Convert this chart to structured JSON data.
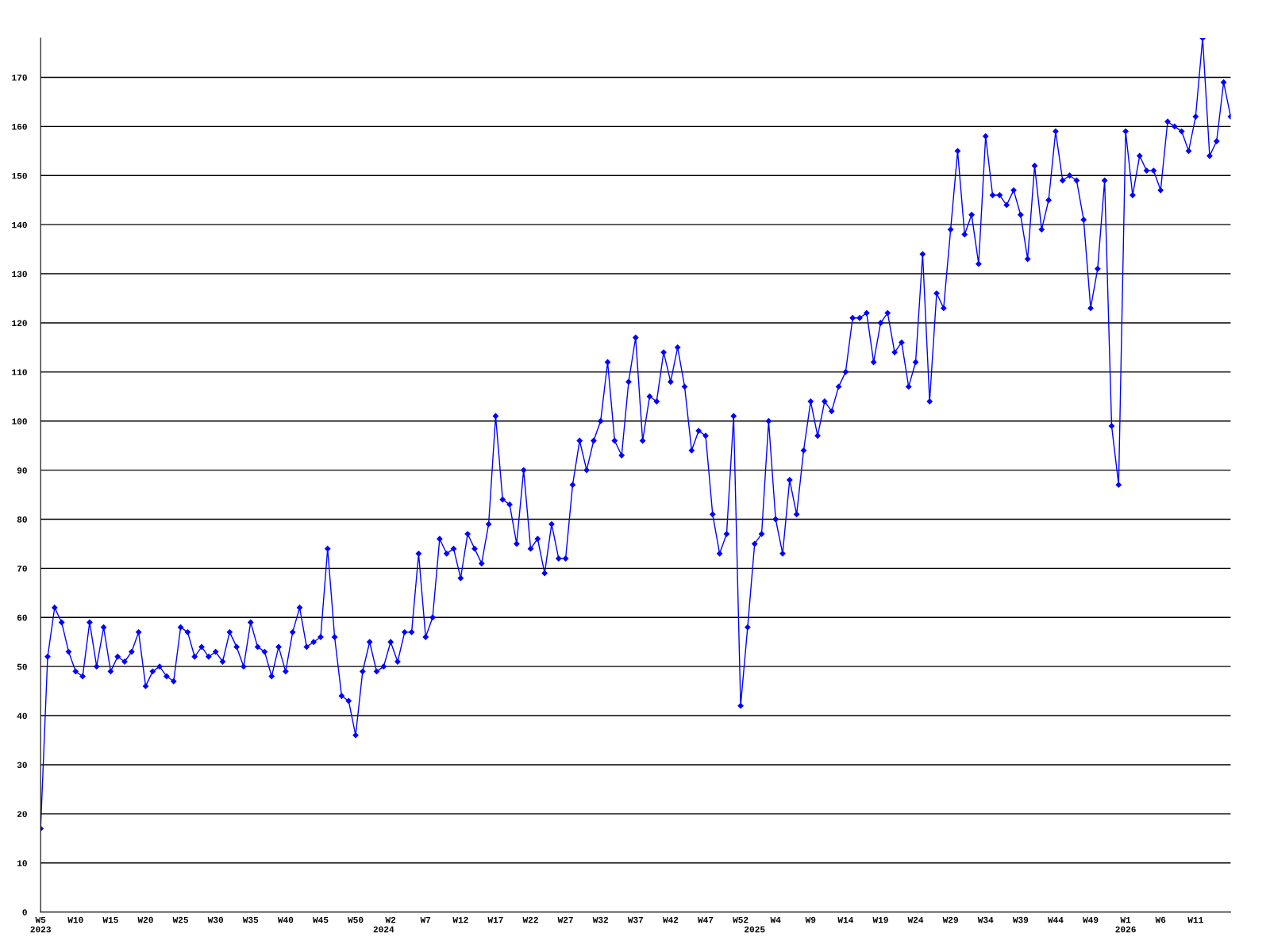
{
  "chart_data": {
    "type": "line",
    "categories": [
      "W5\n2023",
      null,
      null,
      null,
      null,
      "W10",
      null,
      null,
      null,
      null,
      "W15",
      null,
      null,
      null,
      null,
      "W20",
      null,
      null,
      null,
      null,
      "W25",
      null,
      null,
      null,
      null,
      "W30",
      null,
      null,
      null,
      null,
      "W35",
      null,
      null,
      null,
      null,
      "W40",
      null,
      null,
      null,
      null,
      "W45",
      null,
      null,
      null,
      null,
      "W50",
      null,
      null,
      null,
      "\n2024",
      "W2",
      null,
      null,
      null,
      null,
      "W7",
      null,
      null,
      null,
      null,
      "W12",
      null,
      null,
      null,
      null,
      "W17",
      null,
      null,
      null,
      null,
      "W22",
      null,
      null,
      null,
      null,
      "W27",
      null,
      null,
      null,
      null,
      "W32",
      null,
      null,
      null,
      null,
      "W37",
      null,
      null,
      null,
      null,
      "W42",
      null,
      null,
      null,
      null,
      "W47",
      null,
      null,
      null,
      null,
      "W52",
      null,
      "\n2025",
      null,
      null,
      "W4",
      null,
      null,
      null,
      null,
      "W9",
      null,
      null,
      null,
      null,
      "W14",
      null,
      null,
      null,
      null,
      "W19",
      null,
      null,
      null,
      null,
      "W24",
      null,
      null,
      null,
      null,
      "W29",
      null,
      null,
      null,
      null,
      "W34",
      null,
      null,
      null,
      null,
      "W39",
      null,
      null,
      null,
      null,
      "W44",
      null,
      null,
      null,
      null,
      "W49",
      null,
      null,
      null,
      null,
      "W1\n2026",
      null,
      null,
      null,
      null,
      "W6",
      null,
      null,
      null,
      null,
      "W11",
      null,
      null,
      null,
      null,
      null
    ],
    "series": [
      {
        "color": "#0000ff",
        "values": [
          17,
          52,
          62,
          59,
          53,
          49,
          48,
          59,
          50,
          58,
          49,
          52,
          51,
          53,
          57,
          46,
          49,
          50,
          48,
          47,
          58,
          57,
          52,
          54,
          52,
          53,
          51,
          57,
          54,
          50,
          59,
          54,
          53,
          48,
          54,
          49,
          57,
          62,
          54,
          55,
          56,
          74,
          56,
          44,
          43,
          36,
          49,
          55,
          49,
          50,
          55,
          51,
          57,
          57,
          73,
          56,
          60,
          76,
          73,
          74,
          68,
          77,
          74,
          71,
          79,
          101,
          84,
          83,
          75,
          90,
          74,
          76,
          69,
          79,
          72,
          72,
          87,
          96,
          90,
          96,
          100,
          112,
          96,
          93,
          108,
          117,
          96,
          105,
          104,
          114,
          108,
          115,
          107,
          94,
          98,
          97,
          81,
          73,
          77,
          101,
          42,
          58,
          75,
          77,
          100,
          80,
          73,
          88,
          81,
          94,
          104,
          97,
          104,
          102,
          107,
          110,
          121,
          121,
          122,
          112,
          120,
          122,
          114,
          116,
          107,
          112,
          134,
          104,
          126,
          123,
          139,
          155,
          138,
          142,
          132,
          158,
          146,
          146,
          144,
          147,
          142,
          133,
          152,
          139,
          145,
          159,
          149,
          150,
          149,
          141,
          123,
          131,
          149,
          99,
          87,
          159,
          146,
          154,
          151,
          151,
          147,
          161,
          160,
          159,
          155,
          162,
          178,
          154,
          157,
          169,
          162
        ]
      }
    ],
    "ylim": [
      0,
      178
    ],
    "yticks": [
      0,
      10,
      20,
      30,
      40,
      50,
      60,
      70,
      80,
      90,
      100,
      110,
      120,
      130,
      140,
      150,
      160,
      170
    ],
    "grid": "y",
    "marker": "diamond",
    "line_style": "solid"
  }
}
